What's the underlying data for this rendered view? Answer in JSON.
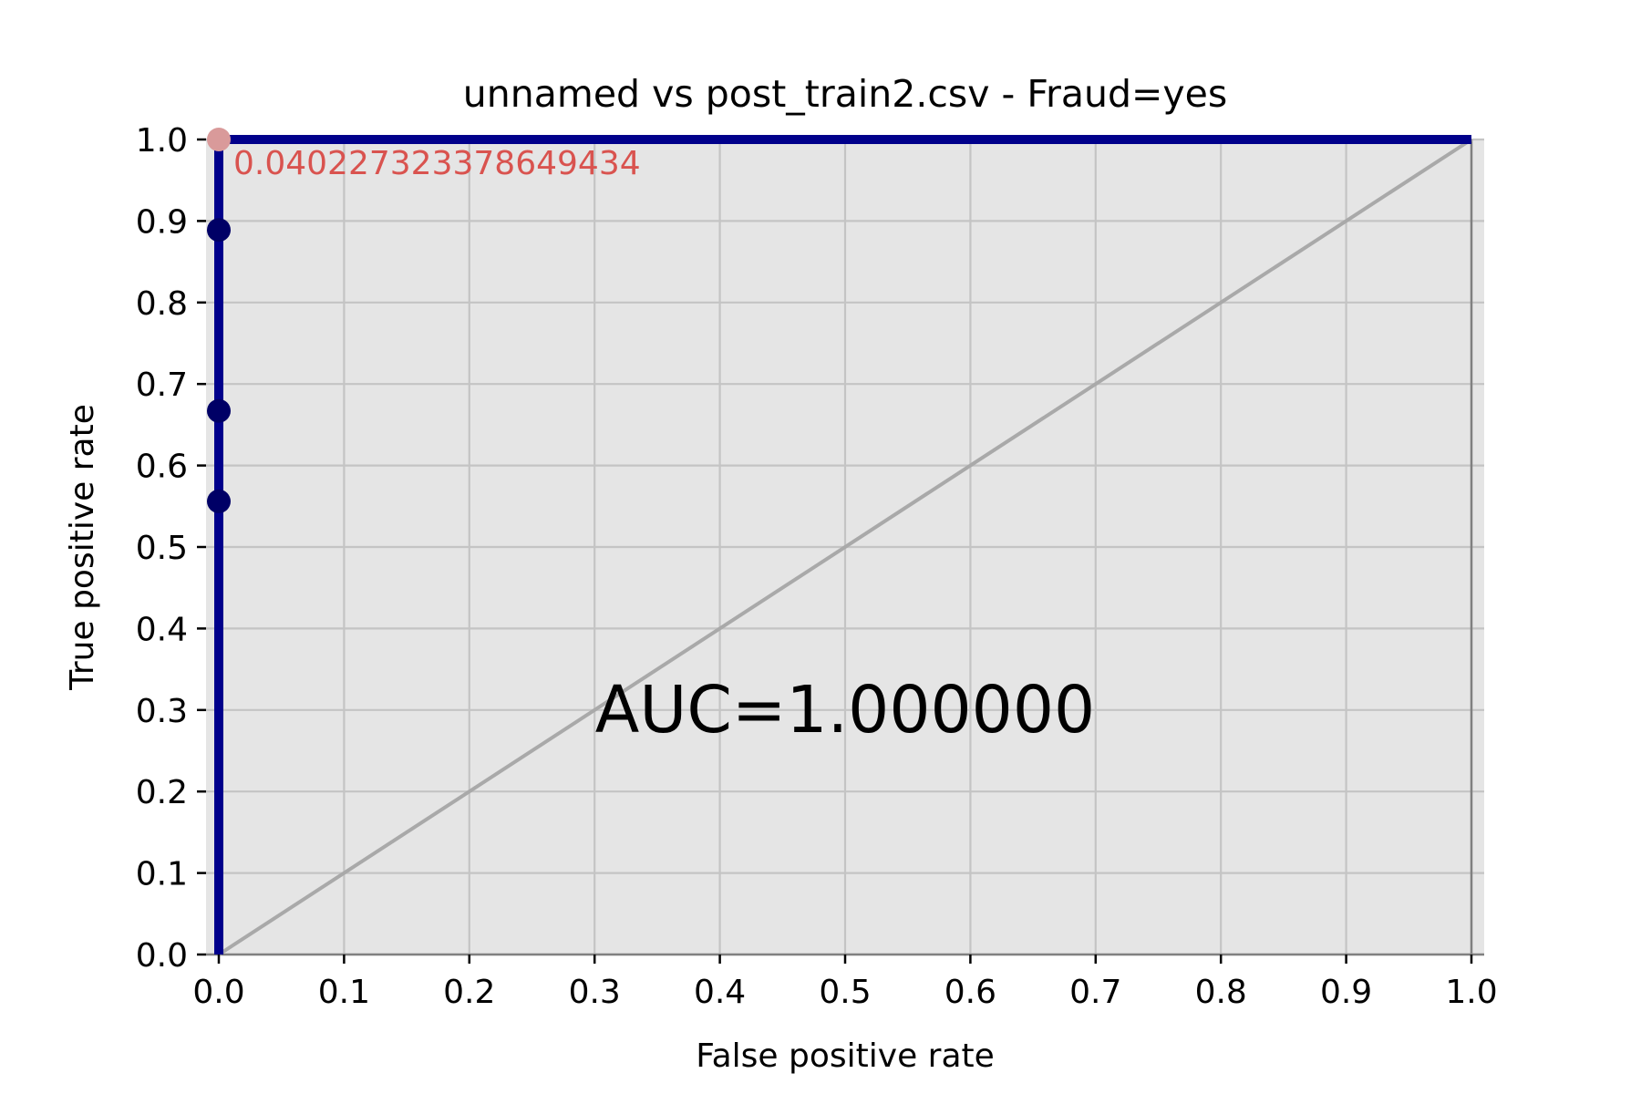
{
  "chart_data": {
    "type": "line",
    "title": "unnamed vs post_train2.csv - Fraud=yes",
    "xlabel": "False positive rate",
    "ylabel": "True positive rate",
    "xlim": [
      0,
      1
    ],
    "ylim": [
      0,
      1
    ],
    "x_ticks": [
      "0.0",
      "0.1",
      "0.2",
      "0.3",
      "0.4",
      "0.5",
      "0.6",
      "0.7",
      "0.8",
      "0.9",
      "1.0"
    ],
    "y_ticks": [
      "0.0",
      "0.1",
      "0.2",
      "0.3",
      "0.4",
      "0.5",
      "0.6",
      "0.7",
      "0.8",
      "0.9",
      "1.0"
    ],
    "grid": true,
    "roc_curve": {
      "x": [
        0.0,
        0.0,
        0.0,
        0.0,
        0.0,
        0.0,
        1.0
      ],
      "y": [
        0.0,
        0.556,
        0.667,
        0.889,
        1.0,
        1.0,
        1.0
      ]
    },
    "markers": {
      "x": [
        0.0,
        0.0,
        0.0
      ],
      "y": [
        0.556,
        0.667,
        0.889
      ]
    },
    "highlight_point": {
      "x": 0.0,
      "y": 1.0,
      "label": "0.040227323378649434"
    },
    "diagonal": {
      "x": [
        0,
        1
      ],
      "y": [
        0,
        1
      ]
    },
    "annotation": {
      "text": "AUC=1.000000",
      "x": 0.5,
      "y": 0.3
    },
    "colors": {
      "curve": "#00008b",
      "markers": "#000066",
      "highlight": "#d99a9a",
      "highlight_label": "#d9534f",
      "diagonal": "#a9a9a9",
      "plot_bg": "#e5e5e5",
      "grid": "#c4c4c4",
      "frame": "#808080"
    }
  }
}
